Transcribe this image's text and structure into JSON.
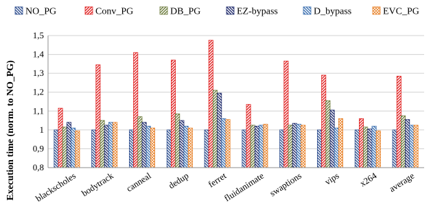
{
  "chart_data": {
    "type": "bar",
    "title": "",
    "xlabel": "",
    "ylabel": "Execution time (norm. to NO_PG)",
    "ylim": [
      0.8,
      1.5
    ],
    "yticks": [
      "0,8",
      "0,9",
      "1",
      "1,1",
      "1,2",
      "1,3",
      "1,4",
      "1,5"
    ],
    "grid": true,
    "legend_position": "top",
    "categories": [
      "blackscholes",
      "bodytrack",
      "canneal",
      "dedup",
      "ferret",
      "fluidanimate",
      "swaptions",
      "vips",
      "x264",
      "average"
    ],
    "series": [
      {
        "name": "NO_PG",
        "color": "#2F4F8F",
        "pattern": "diag-down",
        "values": [
          1,
          1,
          1,
          1,
          1,
          1,
          1,
          1,
          1,
          1
        ]
      },
      {
        "name": "Conv_PG",
        "color": "#E02020",
        "pattern": "diag-up",
        "values": [
          1.115,
          1.345,
          1.41,
          1.37,
          1.475,
          1.135,
          1.365,
          1.29,
          1.06,
          1.285
        ]
      },
      {
        "name": "DB_PG",
        "color": "#6B7A3A",
        "pattern": "diag-up",
        "values": [
          1.015,
          1.05,
          1.07,
          1.085,
          1.21,
          1.025,
          1.025,
          1.155,
          1.015,
          1.075
        ]
      },
      {
        "name": "EZ-bypass",
        "color": "#1F2A6B",
        "pattern": "diag-down",
        "values": [
          1.04,
          1.025,
          1.04,
          1.05,
          1.195,
          1.02,
          1.035,
          1.105,
          1.005,
          1.055
        ]
      },
      {
        "name": "D_bypass",
        "color": "#3A6FB0",
        "pattern": "diag-down",
        "values": [
          1.01,
          1.04,
          1.02,
          1.02,
          1.06,
          1.025,
          1.03,
          1.01,
          1.02,
          1.025
        ]
      },
      {
        "name": "EVC_PG",
        "color": "#E8822A",
        "pattern": "crosshatch",
        "values": [
          0.995,
          1.04,
          1.01,
          1.01,
          1.055,
          1.03,
          1.025,
          1.06,
          0.995,
          1.025
        ]
      }
    ]
  }
}
